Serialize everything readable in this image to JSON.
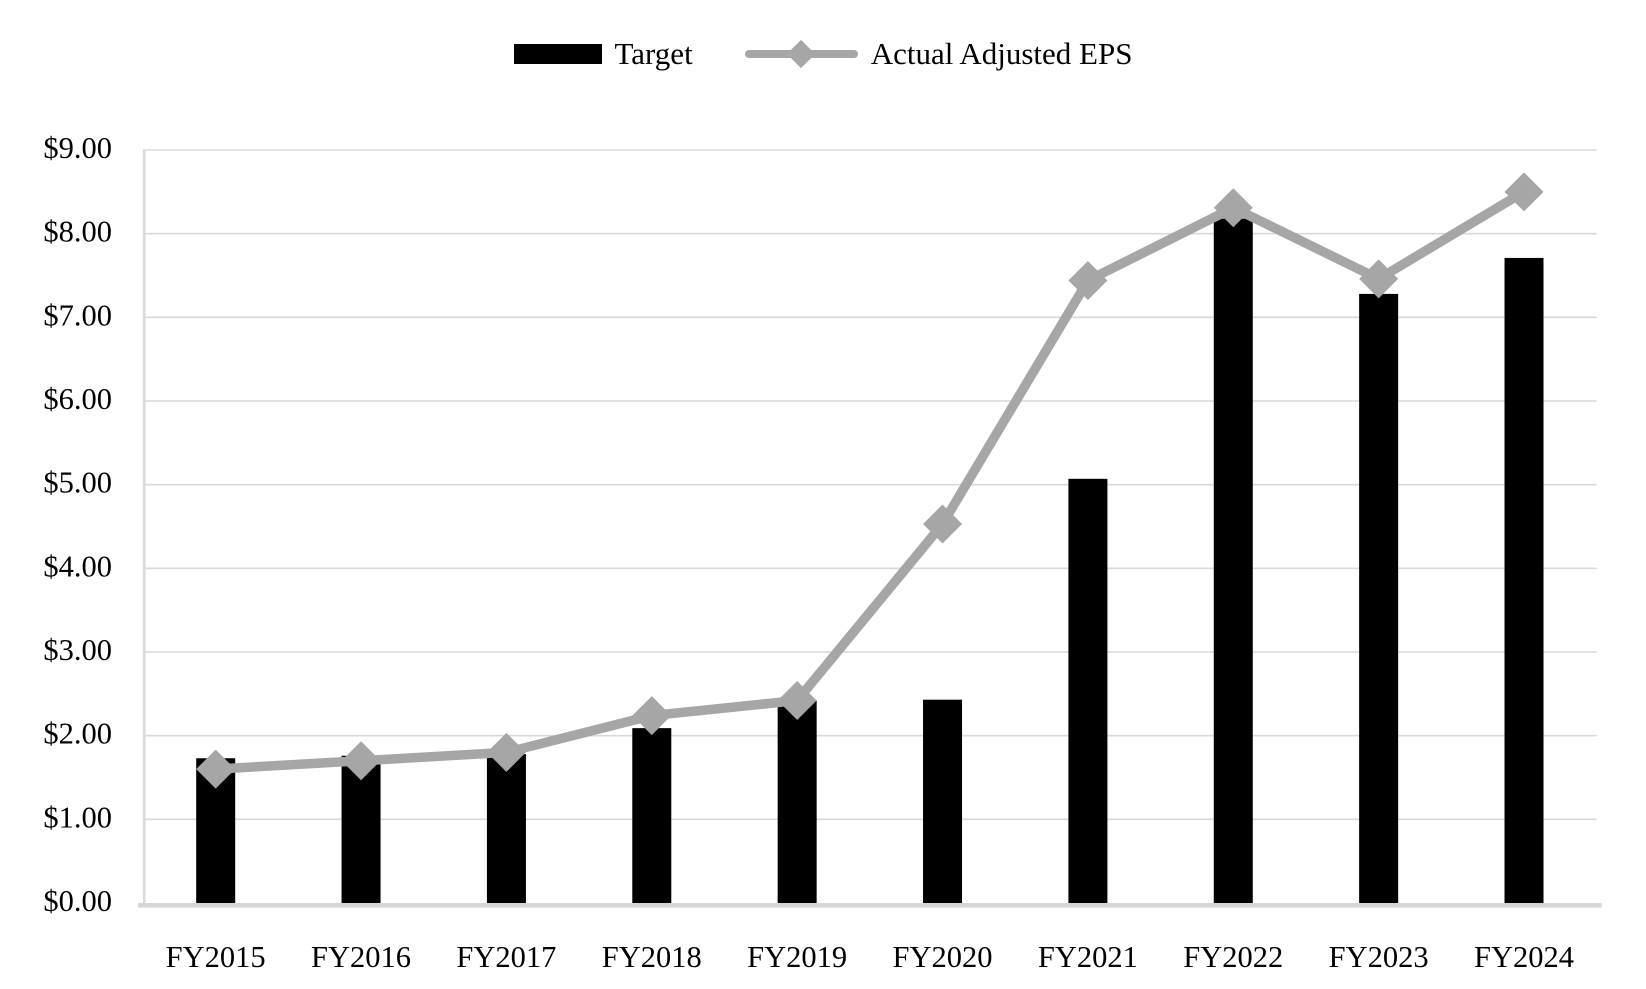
{
  "chart": {
    "legend": [
      {
        "label": "Target",
        "swatch": "black-bar"
      },
      {
        "label": "Actual Adjusted EPS",
        "swatch": "gray-line-diamond"
      }
    ],
    "colors": {
      "background": "#ffffff",
      "bar": "#000000",
      "line": "#a6a6a6",
      "marker": "#a6a6a6",
      "gridline": "#d9d9d9",
      "axis_line": "#d6d6d6",
      "text": "#000000"
    }
  },
  "chart_data": {
    "type": "combo",
    "categories": [
      "FY2015",
      "FY2016",
      "FY2017",
      "FY2018",
      "FY2019",
      "FY2020",
      "FY2021",
      "FY2022",
      "FY2023",
      "FY2024"
    ],
    "series": [
      {
        "name": "Target",
        "type": "bar",
        "color": "#000000",
        "values": [
          1.73,
          1.76,
          1.78,
          2.09,
          2.42,
          2.43,
          5.07,
          8.18,
          7.28,
          7.71
        ]
      },
      {
        "name": "Actual Adjusted EPS",
        "type": "line",
        "marker": "diamond",
        "color": "#a6a6a6",
        "values": [
          1.6,
          1.7,
          1.8,
          2.24,
          2.42,
          4.53,
          7.44,
          8.31,
          7.46,
          8.5
        ]
      }
    ],
    "y_axis": {
      "min": 0,
      "max": 9,
      "tick_step": 1,
      "tick_labels": [
        "$0.00",
        "$1.00",
        "$2.00",
        "$3.00",
        "$4.00",
        "$5.00",
        "$6.00",
        "$7.00",
        "$8.00",
        "$9.00"
      ]
    },
    "x_axis": {
      "tick_labels": [
        "FY2015",
        "FY2016",
        "FY2017",
        "FY2018",
        "FY2019",
        "FY2020",
        "FY2021",
        "FY2022",
        "FY2023",
        "FY2024"
      ]
    },
    "grid": "horizontal",
    "legend_position": "top"
  }
}
